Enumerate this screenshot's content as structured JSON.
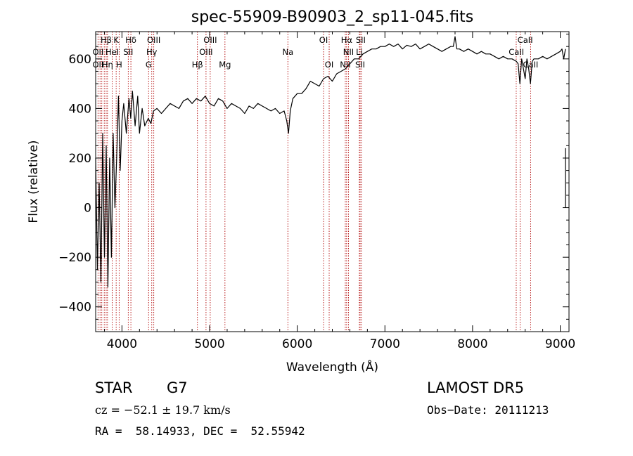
{
  "chart_data": {
    "type": "line",
    "title": "spec-55909-B90903_2_sp11-045.fits",
    "xlabel": "Wavelength (Å)",
    "ylabel": "Flux (relative)",
    "xlim": [
      3700,
      9100
    ],
    "ylim": [
      -500,
      710
    ],
    "xticks": [
      4000,
      5000,
      6000,
      7000,
      8000,
      9000
    ],
    "yticks": [
      -400,
      -200,
      0,
      200,
      400,
      600
    ],
    "grid": false,
    "legend": "none",
    "series": [
      {
        "x": [
          3700,
          3720,
          3740,
          3760,
          3780,
          3800,
          3820,
          3840,
          3860,
          3880,
          3900,
          3920,
          3940,
          3960,
          3980,
          4000,
          4020,
          4050,
          4080,
          4100,
          4120,
          4150,
          4180,
          4200,
          4230,
          4260,
          4300,
          4330,
          4360,
          4400,
          4450,
          4500,
          4550,
          4600,
          4650,
          4700,
          4750,
          4800,
          4850,
          4900,
          4950,
          5000,
          5050,
          5100,
          5150,
          5200,
          5250,
          5300,
          5350,
          5400,
          5450,
          5500,
          5550,
          5600,
          5650,
          5700,
          5750,
          5800,
          5850,
          5880,
          5900,
          5920,
          5950,
          6000,
          6050,
          6100,
          6150,
          6200,
          6250,
          6300,
          6350,
          6400,
          6450,
          6500,
          6550,
          6600,
          6650,
          6700,
          6750,
          6800,
          6850,
          6900,
          6950,
          7000,
          7050,
          7100,
          7150,
          7200,
          7250,
          7300,
          7350,
          7400,
          7450,
          7500,
          7550,
          7600,
          7650,
          7700,
          7750,
          7780,
          7800,
          7820,
          7850,
          7900,
          7950,
          8000,
          8050,
          8100,
          8150,
          8200,
          8250,
          8300,
          8350,
          8400,
          8450,
          8500,
          8520,
          8540,
          8560,
          8580,
          8600,
          8620,
          8640,
          8660,
          8680,
          8700,
          8750,
          8800,
          8850,
          8900,
          8950,
          9000,
          9020,
          9040,
          9060
        ],
        "y": [
          200,
          -250,
          100,
          -300,
          300,
          -200,
          250,
          -320,
          200,
          -200,
          300,
          0,
          200,
          450,
          150,
          350,
          420,
          300,
          440,
          360,
          470,
          330,
          450,
          300,
          400,
          330,
          360,
          340,
          390,
          400,
          380,
          400,
          420,
          410,
          400,
          430,
          440,
          420,
          440,
          430,
          450,
          420,
          410,
          440,
          430,
          400,
          420,
          410,
          400,
          380,
          410,
          400,
          420,
          410,
          400,
          390,
          400,
          380,
          390,
          350,
          300,
          390,
          440,
          460,
          460,
          480,
          510,
          500,
          490,
          520,
          530,
          510,
          540,
          550,
          560,
          580,
          600,
          600,
          620,
          630,
          640,
          640,
          650,
          650,
          660,
          650,
          660,
          640,
          655,
          650,
          660,
          640,
          650,
          660,
          650,
          640,
          630,
          640,
          650,
          650,
          690,
          640,
          640,
          630,
          640,
          630,
          620,
          630,
          620,
          620,
          610,
          600,
          610,
          600,
          600,
          590,
          580,
          500,
          600,
          560,
          520,
          600,
          560,
          500,
          590,
          600,
          600,
          610,
          600,
          610,
          620,
          630,
          640,
          600,
          640
        ]
      }
    ],
    "line_labels": [
      {
        "text": "Hβ",
        "x": 3820,
        "row": 1
      },
      {
        "text": "K",
        "x": 3934,
        "row": 1
      },
      {
        "text": "Hδ",
        "x": 4102,
        "row": 1
      },
      {
        "text": "OIII",
        "x": 4363,
        "row": 1
      },
      {
        "text": "OIII",
        "x": 5007,
        "row": 1
      },
      {
        "text": "OI",
        "x": 6300,
        "row": 1
      },
      {
        "text": "Hα",
        "x": 6563,
        "row": 1
      },
      {
        "text": "SII",
        "x": 6724,
        "row": 1
      },
      {
        "text": "CaII",
        "x": 8600,
        "row": 1
      },
      {
        "text": "OII",
        "x": 3727,
        "row": 2
      },
      {
        "text": "HeI",
        "x": 3889,
        "row": 2
      },
      {
        "text": "SII",
        "x": 4072,
        "row": 2
      },
      {
        "text": "Hγ",
        "x": 4340,
        "row": 2
      },
      {
        "text": "OIII",
        "x": 4959,
        "row": 2
      },
      {
        "text": "Na",
        "x": 5893,
        "row": 2
      },
      {
        "text": "NII",
        "x": 6584,
        "row": 2
      },
      {
        "text": "CaII",
        "x": 8500,
        "row": 2
      },
      {
        "text": "OII",
        "x": 3727,
        "row": 3
      },
      {
        "text": "Hη",
        "x": 3835,
        "row": 3
      },
      {
        "text": "H",
        "x": 3968,
        "row": 3
      },
      {
        "text": "G",
        "x": 4304,
        "row": 3
      },
      {
        "text": "Hβ",
        "x": 4861,
        "row": 3
      },
      {
        "text": "Mg",
        "x": 5175,
        "row": 3
      },
      {
        "text": "OI",
        "x": 6364,
        "row": 3
      },
      {
        "text": "NII",
        "x": 6548,
        "row": 3
      },
      {
        "text": "Li",
        "x": 6708,
        "row": 2
      },
      {
        "text": "SII",
        "x": 6717,
        "row": 3
      },
      {
        "text": "CaII",
        "x": 8662,
        "row": 3
      }
    ],
    "line_markers": [
      3727,
      3750,
      3770,
      3798,
      3820,
      3835,
      3889,
      3934,
      3968,
      4072,
      4102,
      4304,
      4340,
      4363,
      4861,
      4959,
      5007,
      5175,
      5893,
      6300,
      6364,
      6548,
      6563,
      6584,
      6708,
      6717,
      6731,
      8498,
      8542,
      8662
    ],
    "line_color": "#b00000"
  },
  "info": {
    "object_class": "STAR",
    "subclass": "G7",
    "survey": "LAMOST DR5",
    "cz": "cz = −52.1 ± 19.7 km/s",
    "obs_date": "Obs−Date: 20111213",
    "coords": "RA =  58.14933, DEC =  52.55942"
  }
}
